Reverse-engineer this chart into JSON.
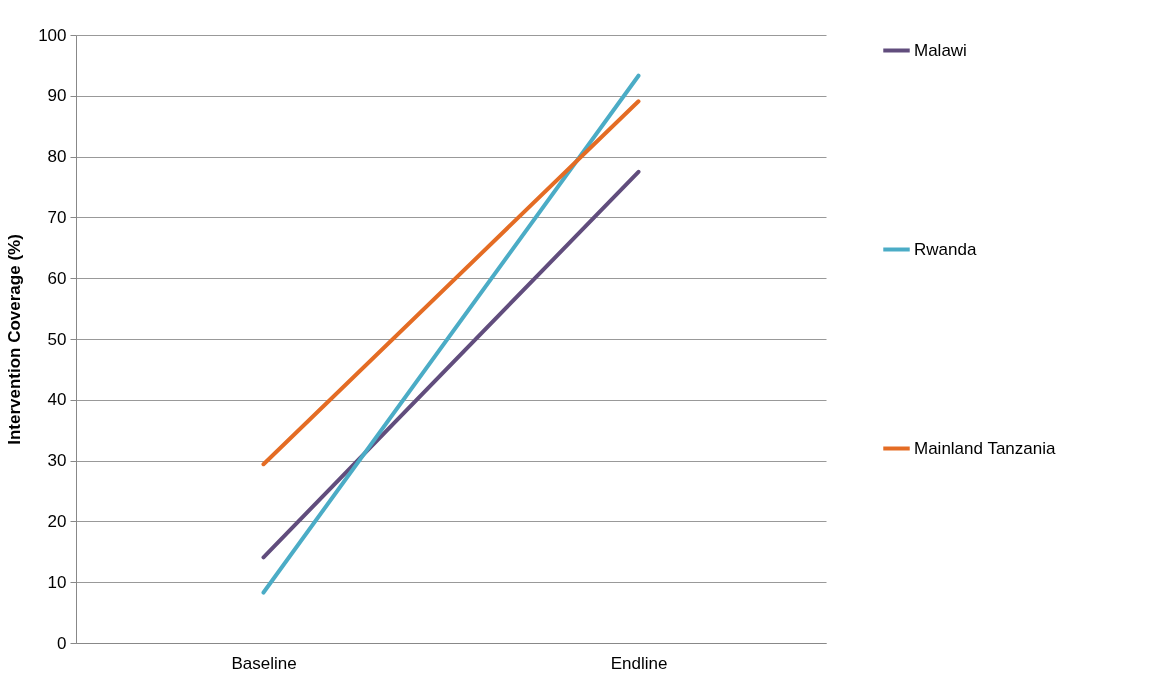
{
  "chart_data": {
    "type": "line",
    "ylabel": "Intervention Coverage (%)",
    "categories": [
      "Baseline",
      "Endline"
    ],
    "series": [
      {
        "name": "Malawi",
        "color": "#614d7d",
        "values": [
          14.1,
          77.5
        ]
      },
      {
        "name": "Rwanda",
        "color": "#4bacc6",
        "values": [
          8.3,
          93.3
        ]
      },
      {
        "name": "Mainland Tanzania",
        "color": "#e46c24",
        "values": [
          29.4,
          89.1
        ]
      }
    ],
    "ylim": [
      0,
      100
    ],
    "yticks": [
      0,
      10,
      20,
      30,
      40,
      50,
      60,
      70,
      80,
      90,
      100
    ],
    "grid": "y",
    "legend": "right",
    "marker": "none",
    "line_style": "solid"
  }
}
